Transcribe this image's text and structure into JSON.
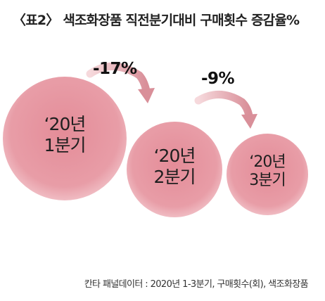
{
  "title": "〈표2〉 색조화장품 직전분기대비 구매횟수 증감율%",
  "circles": [
    {
      "line1": "‘20년",
      "line2": "1분기"
    },
    {
      "line1": "‘20년",
      "line2": "2분기"
    },
    {
      "line1": "‘20년",
      "line2": "3분기"
    }
  ],
  "changes": [
    {
      "label": "-17%",
      "value": -17
    },
    {
      "label": "-9%",
      "value": -9
    }
  ],
  "source": "칸타 패널데이터 : 2020년 1-3분기, 구매횟수(회), 색조화장품",
  "colors": {
    "circle_fill": "#e8a0a9",
    "circle_edge": "#f2c6cc",
    "arrow": "#dfa7ae",
    "background": "#ffffff"
  }
}
